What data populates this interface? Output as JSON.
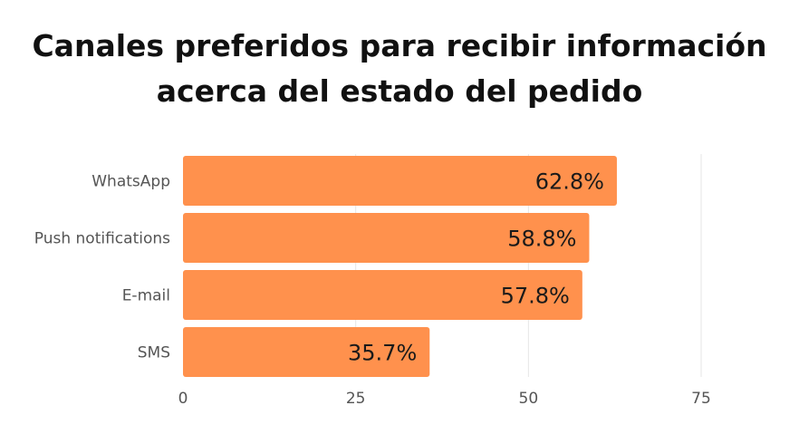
{
  "title_lines": [
    "Canales preferidos para recibir información",
    "acerca del estado del pedido"
  ],
  "colors": {
    "bar": "#ff914d",
    "bar_edge": "#f5a36b",
    "grid": "#e6e6e6",
    "axis_text": "#555555",
    "label_text": "#1a1a1a"
  },
  "chart_data": {
    "type": "bar",
    "orientation": "horizontal",
    "title": "Canales preferidos para recibir información acerca del estado del pedido",
    "categories": [
      "WhatsApp",
      "Push notifications",
      "E-mail",
      "SMS"
    ],
    "values": [
      62.8,
      58.8,
      57.8,
      35.7
    ],
    "data_labels": [
      "62.8%",
      "58.8%",
      "57.8%",
      "35.7%"
    ],
    "xlim": [
      0,
      75
    ],
    "xticks": [
      0,
      25,
      50,
      75
    ],
    "xlabel": "",
    "ylabel": "",
    "grid": true
  }
}
